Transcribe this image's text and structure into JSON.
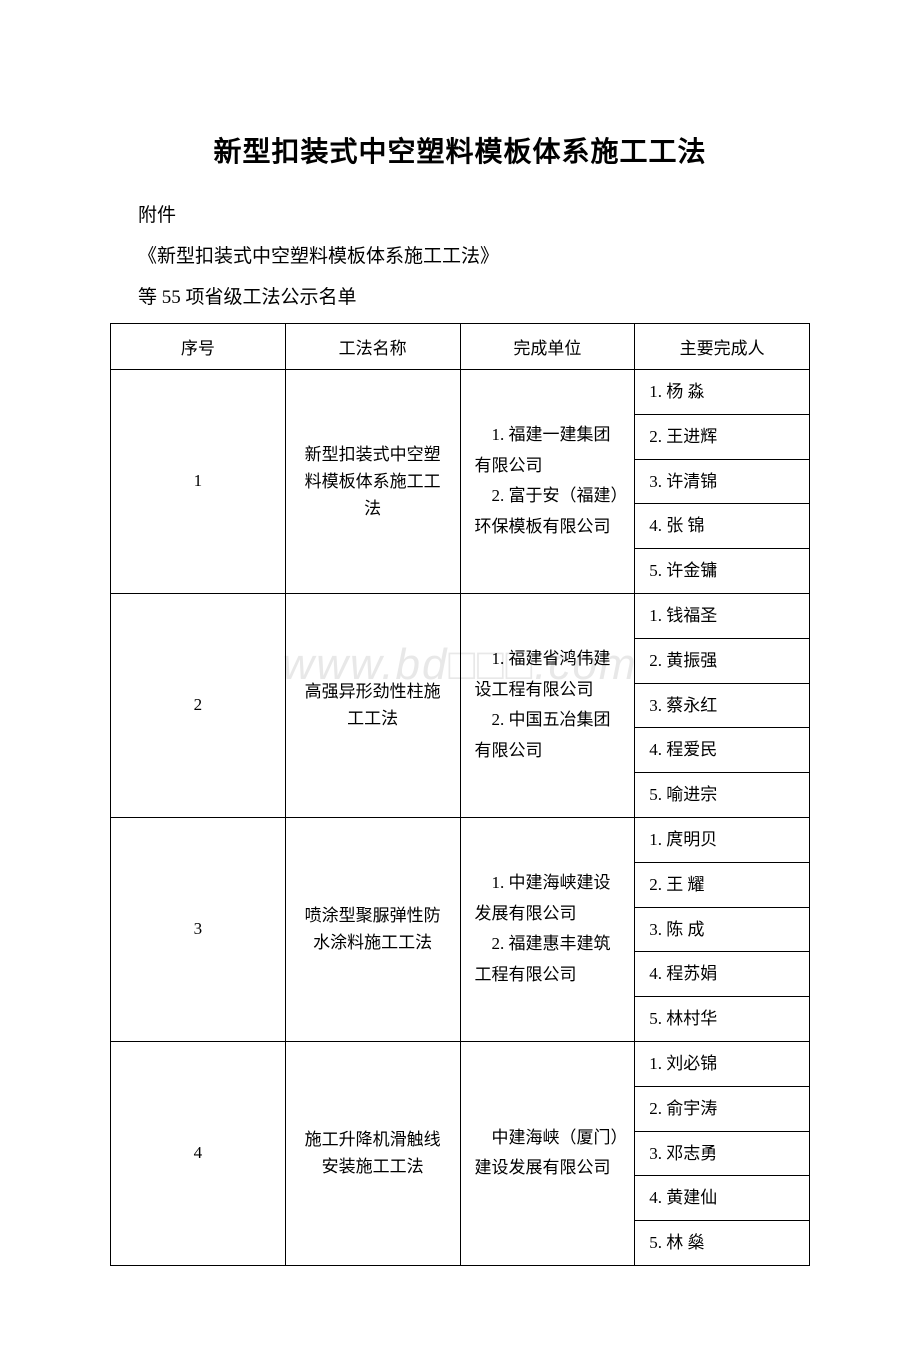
{
  "title": "新型扣装式中空塑料模板体系施工工法",
  "subtitles": [
    "附件",
    "《新型扣装式中空塑料模板体系施工工法》",
    "等 55 项省级工法公示名单"
  ],
  "watermark": "www.bd□□□.com",
  "table": {
    "columns": [
      "序号",
      "工法名称",
      "完成单位",
      "主要完成人"
    ],
    "rows": [
      {
        "seq": "1",
        "name": "新型扣装式中空塑料模板体系施工工法",
        "unit": "　1. 福建一建集团有限公司\n　2. 富于安（福建）环保模板有限公司",
        "persons": [
          "1. 杨 淼",
          "2. 王进辉",
          "3. 许清锦",
          "4. 张 锦",
          "5. 许金镛"
        ]
      },
      {
        "seq": "2",
        "name": "高强异形劲性柱施工工法",
        "unit": "　1. 福建省鸿伟建设工程有限公司\n　2. 中国五冶集团有限公司",
        "persons": [
          "1. 钱福圣",
          "2. 黄振强",
          "3. 蔡永红",
          "4. 程爱民",
          "5. 喻进宗"
        ]
      },
      {
        "seq": "3",
        "name": "喷涂型聚脲弹性防水涂料施工工法",
        "unit": "　1. 中建海峡建设发展有限公司\n　2. 福建惠丰建筑工程有限公司",
        "persons": [
          "1. 庹明贝",
          "2. 王 耀",
          "3. 陈 成",
          "4. 程苏娟",
          "5. 林村华"
        ]
      },
      {
        "seq": "4",
        "name": "施工升降机滑触线安装施工工法",
        "unit": "　中建海峡（厦门）建设发展有限公司",
        "persons": [
          "1. 刘必锦",
          "2. 俞宇涛",
          "3. 邓志勇",
          "4. 黄建仙",
          "5. 林 燊"
        ]
      }
    ]
  },
  "styles": {
    "background_color": "#ffffff",
    "text_color": "#000000",
    "border_color": "#000000",
    "watermark_color": "#e8e8e8",
    "title_fontsize": 28,
    "subtitle_fontsize": 19,
    "cell_fontsize": 17
  }
}
